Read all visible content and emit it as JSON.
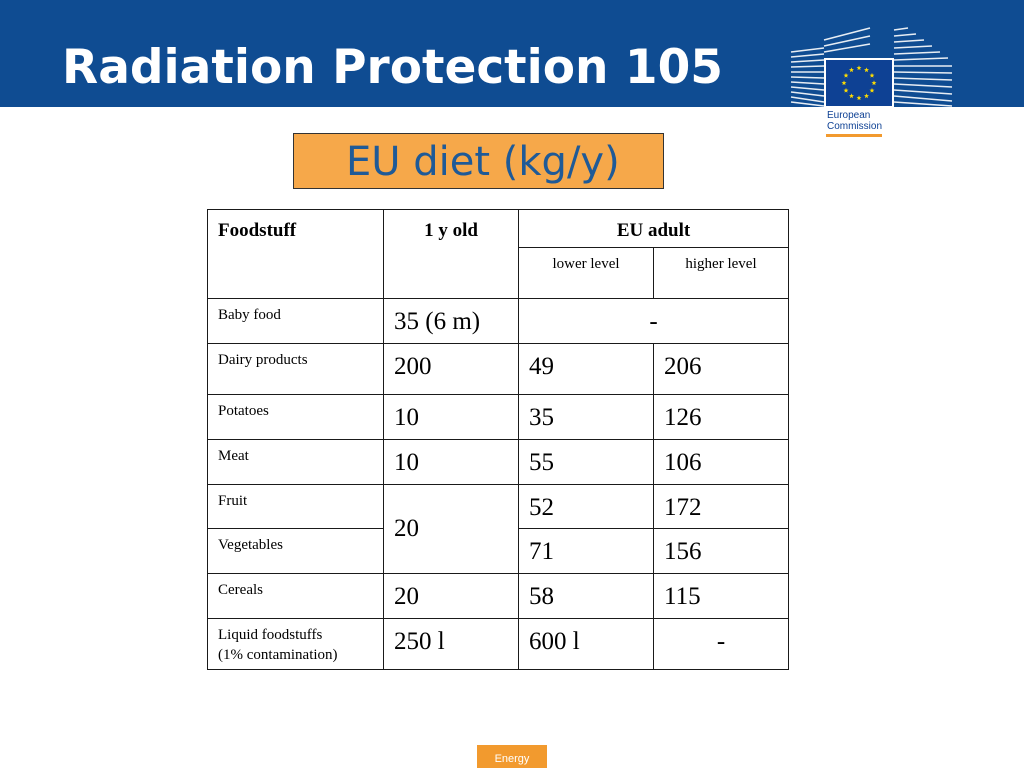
{
  "header": {
    "title": "Radiation Protection 105",
    "background_color": "#0f4c92"
  },
  "logo": {
    "line1": "European",
    "line2": "Commission",
    "icon": "eu-flag-icon"
  },
  "subtitle": {
    "text": "EU diet (kg/y)",
    "background_color": "#f6a84a"
  },
  "table": {
    "headers": {
      "foodstuff": "Foodstuff",
      "one_year_old": "1 y old",
      "eu_adult": "EU adult",
      "lower_level": "lower level",
      "higher_level": "higher level"
    },
    "rows": [
      {
        "food": "Baby food",
        "one_year_old": "35 (6 m)",
        "adult_merged": "-"
      },
      {
        "food": "Dairy products",
        "one_year_old": "200",
        "lower": "49",
        "higher": "206"
      },
      {
        "food": "Potatoes",
        "one_year_old": "10",
        "lower": "35",
        "higher": "126"
      },
      {
        "food": "Meat",
        "one_year_old": "10",
        "lower": "55",
        "higher": "106"
      },
      {
        "food": "Fruit",
        "one_year_old_shared": "20",
        "lower": "52",
        "higher": "172"
      },
      {
        "food": "Vegetables",
        "lower": "71",
        "higher": "156"
      },
      {
        "food": "Cereals",
        "one_year_old": "20",
        "lower": "58",
        "higher": "115"
      },
      {
        "food_line1": "Liquid foodstuffs",
        "food_line2": "(1% contamination)",
        "one_year_old": "250 l",
        "lower": "600 l",
        "higher": "-"
      }
    ]
  },
  "footer": {
    "label": "Energy",
    "color": "#f29a2e"
  }
}
